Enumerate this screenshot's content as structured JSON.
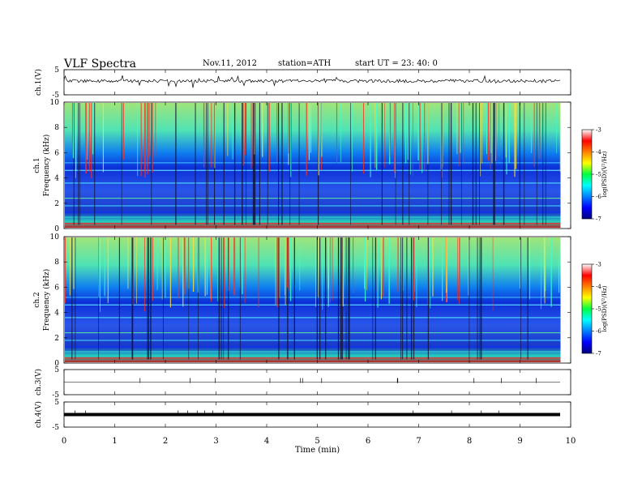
{
  "header": {
    "title": "VLF  Spectra",
    "date": "Nov.11, 2012",
    "station": "station=ATH",
    "start": "start  UT  =   23: 40: 0"
  },
  "chart_data": [
    {
      "type": "line",
      "panel": "ch1",
      "ylabel": "ch.1(V)",
      "ylim": [
        -5,
        5
      ],
      "yticks": [
        "5",
        "-5"
      ],
      "description_level": 0.5
    },
    {
      "type": "heatmap",
      "panel": "spec1",
      "ylabel_line1": "ch.1",
      "ylabel_line2": "Frequency  (kHz)",
      "ylim": [
        0,
        10
      ],
      "yticks": [
        "0",
        "2",
        "4",
        "6",
        "8",
        "10"
      ],
      "colorbar": {
        "label": "log(PSD)(V²/Hz)",
        "ticks": [
          "-3",
          "-4",
          "-5",
          "-6",
          "-7"
        ],
        "range": [
          -7,
          -3
        ]
      }
    },
    {
      "type": "heatmap",
      "panel": "spec2",
      "ylabel_line1": "ch.2",
      "ylabel_line2": "Frequency  (kHz)",
      "ylim": [
        0,
        10
      ],
      "yticks": [
        "0",
        "2",
        "4",
        "6",
        "8",
        "10"
      ],
      "colorbar": {
        "label": "log(PSD)(V²/Hz)",
        "ticks": [
          "-3",
          "-4",
          "-5",
          "-6",
          "-7"
        ],
        "range": [
          -7,
          -3
        ]
      }
    },
    {
      "type": "line",
      "panel": "ch3",
      "ylabel": "ch.3(V)",
      "ylim": [
        -5,
        5
      ],
      "yticks": [
        "5",
        "-5"
      ],
      "level": 0
    },
    {
      "type": "line",
      "panel": "ch4",
      "ylabel": "ch.4(V)",
      "ylim": [
        -5,
        5
      ],
      "yticks": [
        "5",
        "-5"
      ],
      "level": 0
    }
  ],
  "xaxis": {
    "label": "Time  (min)",
    "range": [
      0,
      10
    ],
    "ticks": [
      "0",
      "1",
      "2",
      "3",
      "4",
      "5",
      "6",
      "7",
      "8",
      "9",
      "10"
    ],
    "data_end": 9.8
  }
}
